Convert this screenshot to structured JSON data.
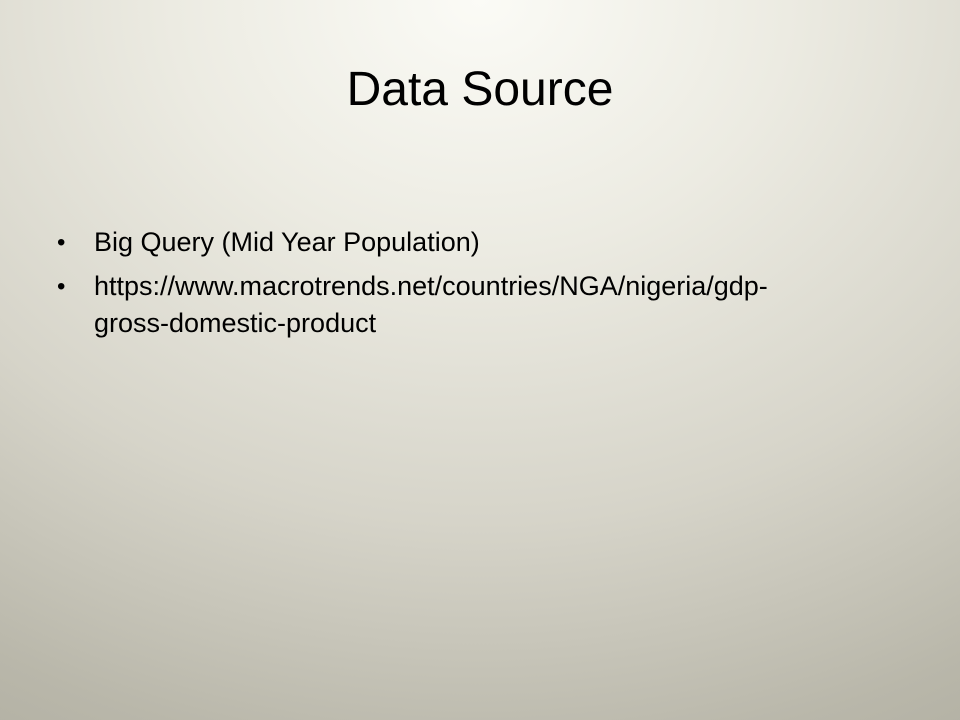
{
  "slide": {
    "title": "Data Source",
    "bullets": [
      {
        "marker": "•",
        "text": "Big Query (Mid Year Population)"
      },
      {
        "marker": "•",
        "text_line1": "https://www.macrotrends.net/countries/NGA/nigeria/gdp-",
        "text_line2": "gross-domestic-product"
      }
    ]
  }
}
